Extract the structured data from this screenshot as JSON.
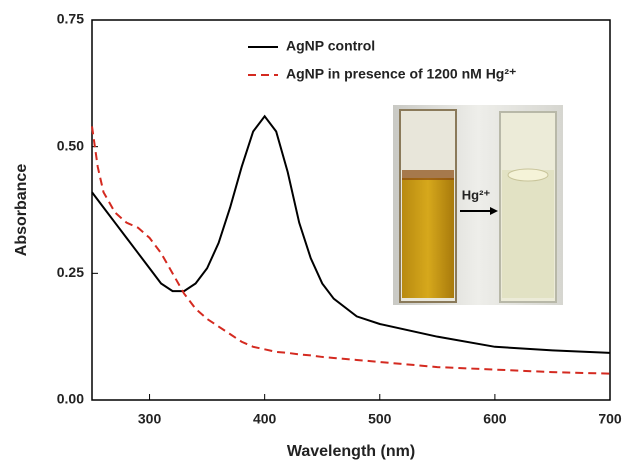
{
  "chart_data": {
    "type": "line",
    "x_label": "Wavelength (nm)",
    "y_label": "Absorbance",
    "x": [
      250,
      255,
      260,
      270,
      280,
      290,
      300,
      310,
      320,
      330,
      340,
      350,
      360,
      370,
      380,
      390,
      400,
      410,
      420,
      430,
      440,
      450,
      460,
      480,
      500,
      550,
      600,
      650,
      700
    ],
    "series": [
      {
        "name": "AgNP control",
        "color": "#000000",
        "dash": false,
        "values": [
          0.41,
          0.395,
          0.38,
          0.35,
          0.32,
          0.29,
          0.26,
          0.23,
          0.215,
          0.215,
          0.23,
          0.26,
          0.31,
          0.38,
          0.46,
          0.53,
          0.56,
          0.53,
          0.45,
          0.35,
          0.28,
          0.23,
          0.2,
          0.165,
          0.15,
          0.125,
          0.105,
          0.098,
          0.093
        ]
      },
      {
        "name": "AgNP in presence of 1200 nM Hg²⁺",
        "color": "#d42a20",
        "dash": true,
        "values": [
          0.54,
          0.46,
          0.41,
          0.37,
          0.35,
          0.34,
          0.32,
          0.29,
          0.25,
          0.21,
          0.18,
          0.16,
          0.145,
          0.13,
          0.115,
          0.105,
          0.1,
          0.095,
          0.093,
          0.09,
          0.088,
          0.085,
          0.083,
          0.079,
          0.075,
          0.065,
          0.06,
          0.055,
          0.052
        ]
      }
    ],
    "xlim": [
      250,
      700
    ],
    "xticks": [
      300,
      400,
      500,
      600,
      700
    ],
    "ylim": [
      0,
      0.75
    ],
    "yticks": [
      {
        "value": 0,
        "label": "0.00"
      },
      {
        "value": 0.25,
        "label": "0.25"
      },
      {
        "value": 0.5,
        "label": "0.50"
      },
      {
        "value": 0.75,
        "label": "0.75"
      }
    ],
    "annotations": [
      {
        "text": "Hg²⁺"
      }
    ],
    "legend": "top-center"
  }
}
